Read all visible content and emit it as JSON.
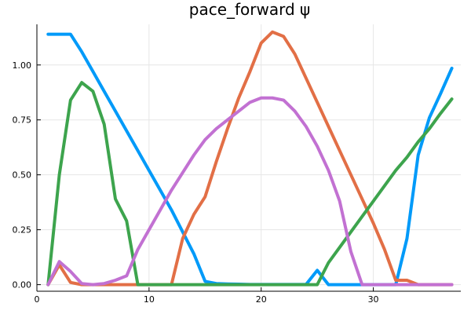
{
  "chart_data": {
    "type": "line",
    "title": "pace_forward ψ",
    "xlabel": "",
    "ylabel": "",
    "xlim": [
      0,
      37.8
    ],
    "ylim": [
      -0.03,
      1.185
    ],
    "xticks": [
      0,
      10,
      20,
      30
    ],
    "yticks": [
      0.0,
      0.25,
      0.5,
      0.75,
      1.0
    ],
    "xtick_labels": [
      "0",
      "10",
      "20",
      "30"
    ],
    "ytick_labels": [
      "0.00",
      "0.25",
      "0.50",
      "0.75",
      "1.00"
    ],
    "grid": true,
    "legend": "none",
    "x": [
      1,
      2,
      3,
      4,
      5,
      6,
      7,
      8,
      9,
      10,
      11,
      12,
      13,
      14,
      15,
      16,
      17,
      18,
      19,
      20,
      21,
      22,
      23,
      24,
      25,
      26,
      27,
      28,
      29,
      30,
      31,
      32,
      33,
      34,
      35,
      36,
      37
    ],
    "series": [
      {
        "color": "#009af9",
        "values": [
          1.14,
          1.14,
          1.14,
          1.06,
          0.97,
          0.88,
          0.79,
          0.7,
          0.61,
          0.52,
          0.43,
          0.34,
          0.24,
          0.14,
          0.015,
          0.005,
          0.003,
          0.002,
          0.001,
          0.001,
          0.001,
          0.001,
          0.001,
          0.001,
          0.065,
          0.0,
          0.0,
          0.0,
          0.0,
          0.0,
          0.0,
          0.0,
          0.21,
          0.59,
          0.76,
          0.87,
          0.985
        ]
      },
      {
        "color": "#e26f46",
        "values": [
          0.0,
          0.09,
          0.01,
          0.0,
          0.0,
          0.0,
          0.0,
          0.0,
          0.0,
          0.0,
          0.0,
          0.0,
          0.21,
          0.32,
          0.4,
          0.56,
          0.71,
          0.85,
          0.97,
          1.1,
          1.15,
          1.13,
          1.05,
          0.94,
          0.83,
          0.72,
          0.61,
          0.5,
          0.39,
          0.28,
          0.16,
          0.02,
          0.02,
          0.0,
          0.0,
          0.0,
          0.0
        ]
      },
      {
        "color": "#3da44d",
        "values": [
          0.0,
          0.5,
          0.84,
          0.92,
          0.88,
          0.73,
          0.39,
          0.29,
          0.0,
          0.0,
          0.0,
          0.0,
          0.0,
          0.0,
          0.0,
          0.0,
          0.0,
          0.0,
          0.0,
          0.0,
          0.0,
          0.0,
          0.0,
          0.0,
          0.0,
          0.1,
          0.17,
          0.24,
          0.31,
          0.38,
          0.45,
          0.52,
          0.58,
          0.65,
          0.71,
          0.78,
          0.845
        ]
      },
      {
        "color": "#c271d2",
        "values": [
          0.0,
          0.105,
          0.06,
          0.005,
          0.0,
          0.005,
          0.02,
          0.04,
          0.16,
          0.25,
          0.34,
          0.43,
          0.51,
          0.59,
          0.66,
          0.71,
          0.75,
          0.79,
          0.83,
          0.85,
          0.85,
          0.84,
          0.79,
          0.72,
          0.63,
          0.52,
          0.38,
          0.15,
          0.0,
          0.0,
          0.0,
          0.0,
          0.0,
          0.0,
          0.0,
          0.0,
          0.0
        ]
      }
    ]
  }
}
